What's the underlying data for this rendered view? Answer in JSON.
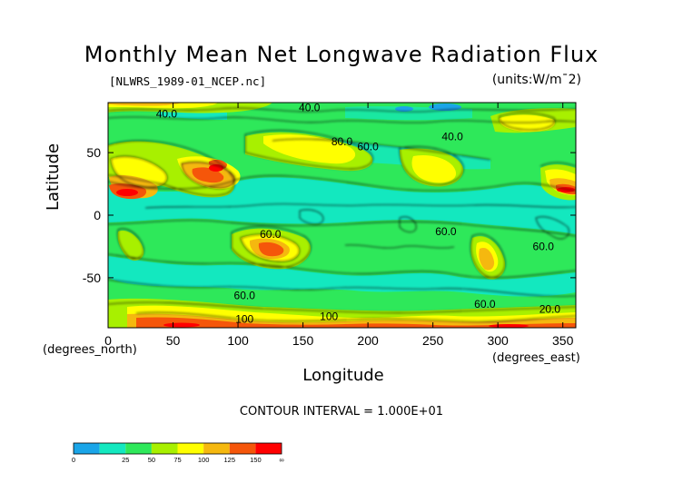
{
  "title": "Monthly Mean Net Longwave Radiation Flux",
  "file_label": "[NLWRS_1989-01_NCEP.nc]",
  "units_label": "(units:W/m^2)",
  "units_display": "(units:W/m¯2)",
  "contour_note": "CONTOUR INTERVAL = 1.000E+01",
  "chart_data": {
    "type": "heatmap",
    "title": "Monthly Mean Net Longwave Radiation Flux",
    "xlabel": "Longitude",
    "ylabel": "Latitude",
    "x_unit": "(degrees_east)",
    "y_unit": "(degrees_north)",
    "xlim": [
      0,
      360
    ],
    "ylim": [
      -90,
      90
    ],
    "x_ticks": [
      0,
      50,
      100,
      150,
      200,
      250,
      300,
      350
    ],
    "y_ticks": [
      -50,
      0,
      50
    ],
    "colorbar": {
      "boundaries": [
        "0",
        "25",
        "50",
        "75",
        "100",
        "125",
        "150",
        "∞"
      ],
      "colors": [
        "#1aa5e8",
        "#13e8bf",
        "#2ee85a",
        "#a8f000",
        "#ffff00",
        "#f5b80f",
        "#f5560a",
        "#ff0000"
      ]
    },
    "contour_labels": [
      {
        "text": "40.0",
        "lon": 45,
        "lat": 78
      },
      {
        "text": "40.0",
        "lon": 155,
        "lat": 83
      },
      {
        "text": "80.0",
        "lon": 180,
        "lat": 56
      },
      {
        "text": "60.0",
        "lon": 200,
        "lat": 52
      },
      {
        "text": "40.0",
        "lon": 265,
        "lat": 60
      },
      {
        "text": "60.0",
        "lon": 125,
        "lat": -18
      },
      {
        "text": "60.0",
        "lon": 260,
        "lat": -16
      },
      {
        "text": "60.0",
        "lon": 335,
        "lat": -28
      },
      {
        "text": "60.0",
        "lon": 105,
        "lat": -67
      },
      {
        "text": "60.0",
        "lon": 290,
        "lat": -74
      },
      {
        "text": "100",
        "lon": 105,
        "lat": -86
      },
      {
        "text": "100",
        "lon": 170,
        "lat": -84
      },
      {
        "text": "20.0",
        "lon": 340,
        "lat": -78
      }
    ]
  }
}
